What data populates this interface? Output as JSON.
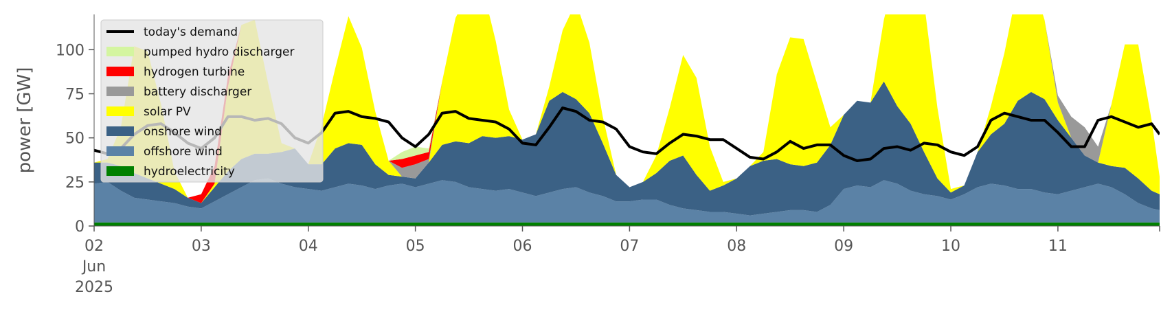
{
  "chart_data": {
    "type": "area",
    "title": "",
    "xlabel": "",
    "ylabel": "power [GW]",
    "ylim": [
      0,
      120
    ],
    "xlim_days": [
      0,
      9.95
    ],
    "yticks": [
      0,
      25,
      50,
      75,
      100
    ],
    "xticks": [
      {
        "label": "02",
        "sub": [
          "Jun",
          "2025"
        ]
      },
      {
        "label": "03"
      },
      {
        "label": "04"
      },
      {
        "label": "05"
      },
      {
        "label": "06"
      },
      {
        "label": "07"
      },
      {
        "label": "08"
      },
      {
        "label": "09"
      },
      {
        "label": "10"
      },
      {
        "label": "11"
      }
    ],
    "legend_position": "top-left",
    "grid": false,
    "x": [
      0.0,
      0.125,
      0.25,
      0.375,
      0.5,
      0.625,
      0.75,
      0.875,
      1.0,
      1.125,
      1.25,
      1.375,
      1.5,
      1.625,
      1.75,
      1.875,
      2.0,
      2.125,
      2.25,
      2.375,
      2.5,
      2.625,
      2.75,
      2.875,
      3.0,
      3.125,
      3.25,
      3.375,
      3.5,
      3.625,
      3.75,
      3.875,
      4.0,
      4.125,
      4.25,
      4.375,
      4.5,
      4.625,
      4.75,
      4.875,
      5.0,
      5.125,
      5.25,
      5.375,
      5.5,
      5.625,
      5.75,
      5.875,
      6.0,
      6.125,
      6.25,
      6.375,
      6.5,
      6.625,
      6.75,
      6.875,
      7.0,
      7.125,
      7.25,
      7.375,
      7.5,
      7.625,
      7.75,
      7.875,
      8.0,
      8.125,
      8.25,
      8.375,
      8.5,
      8.625,
      8.75,
      8.875,
      9.0,
      9.125,
      9.25,
      9.375,
      9.5,
      9.625,
      9.75,
      9.875,
      9.95
    ],
    "series": [
      {
        "name": "hydroelectricity",
        "color": "#008000",
        "values": [
          2,
          2,
          2,
          2,
          2,
          2,
          2,
          2,
          2,
          2,
          2,
          2,
          2,
          2,
          2,
          2,
          2,
          2,
          2,
          2,
          2,
          2,
          2,
          2,
          2,
          2,
          2,
          2,
          2,
          2,
          2,
          2,
          2,
          2,
          2,
          2,
          2,
          2,
          2,
          2,
          2,
          2,
          2,
          2,
          2,
          2,
          2,
          2,
          2,
          2,
          2,
          2,
          2,
          2,
          2,
          2,
          2,
          2,
          2,
          2,
          2,
          2,
          2,
          2,
          2,
          2,
          2,
          2,
          2,
          2,
          2,
          2,
          2,
          2,
          2,
          2,
          2,
          2,
          2,
          2,
          2
        ]
      },
      {
        "name": "offshore wind",
        "color": "#5b82a6",
        "values": [
          22,
          23,
          18,
          14,
          13,
          12,
          11,
          9,
          8,
          12,
          16,
          20,
          24,
          25,
          22,
          20,
          19,
          18,
          20,
          22,
          21,
          19,
          21,
          22,
          20,
          22,
          24,
          23,
          20,
          19,
          18,
          19,
          17,
          15,
          17,
          19,
          20,
          17,
          15,
          12,
          12,
          13,
          13,
          10,
          8,
          7,
          6,
          6,
          5,
          4,
          5,
          6,
          7,
          7,
          6,
          10,
          19,
          21,
          20,
          24,
          22,
          18,
          16,
          15,
          13,
          16,
          20,
          22,
          21,
          19,
          19,
          17,
          16,
          18,
          20,
          22,
          20,
          16,
          11,
          8,
          7
        ]
      },
      {
        "name": "onshore wind",
        "color": "#3b6185",
        "values": [
          12,
          11,
          14,
          14,
          12,
          10,
          8,
          5,
          3,
          8,
          13,
          16,
          15,
          14,
          18,
          22,
          14,
          15,
          22,
          23,
          23,
          14,
          6,
          4,
          5,
          12,
          20,
          23,
          25,
          30,
          30,
          30,
          30,
          35,
          52,
          55,
          50,
          45,
          30,
          15,
          8,
          10,
          15,
          25,
          30,
          20,
          12,
          15,
          20,
          28,
          30,
          30,
          26,
          25,
          28,
          34,
          42,
          48,
          48,
          56,
          44,
          38,
          24,
          10,
          4,
          5,
          20,
          28,
          35,
          50,
          55,
          53,
          42,
          30,
          18,
          12,
          12,
          15,
          14,
          10,
          9
        ]
      },
      {
        "name": "solar PV",
        "color": "#ffff00",
        "values": [
          0,
          2,
          22,
          72,
          72,
          45,
          10,
          0,
          0,
          2,
          48,
          76,
          76,
          40,
          5,
          0,
          0,
          22,
          45,
          72,
          55,
          30,
          8,
          0,
          0,
          0,
          36,
          70,
          86,
          85,
          55,
          15,
          0,
          0,
          8,
          35,
          55,
          40,
          15,
          0,
          0,
          0,
          10,
          30,
          57,
          55,
          25,
          2,
          0,
          0,
          5,
          48,
          72,
          72,
          45,
          10,
          0,
          0,
          0,
          35,
          80,
          88,
          85,
          40,
          2,
          0,
          0,
          16,
          40,
          65,
          65,
          45,
          10,
          0,
          0,
          0,
          35,
          70,
          76,
          40,
          10
        ]
      },
      {
        "name": "battery discharger",
        "color": "#999999",
        "values": [
          0,
          0,
          0,
          0,
          0,
          0,
          0,
          0,
          0,
          0,
          0,
          0,
          0,
          0,
          0,
          0,
          0,
          0,
          0,
          0,
          0,
          0,
          0,
          5,
          8,
          2,
          0,
          0,
          0,
          0,
          0,
          0,
          0,
          0,
          0,
          0,
          0,
          0,
          0,
          0,
          0,
          0,
          0,
          0,
          0,
          0,
          0,
          0,
          0,
          0,
          0,
          0,
          0,
          0,
          0,
          0,
          0,
          0,
          0,
          0,
          0,
          0,
          0,
          0,
          0,
          0,
          0,
          0,
          0,
          0,
          0,
          0,
          4,
          12,
          16,
          9,
          0,
          0,
          0,
          0,
          0
        ]
      },
      {
        "name": "hydrogen turbine",
        "color": "#ff0000",
        "values": [
          0,
          0,
          0,
          0,
          0,
          0,
          0,
          0,
          5,
          10,
          6,
          0,
          0,
          0,
          0,
          0,
          0,
          0,
          0,
          0,
          0,
          0,
          0,
          5,
          5,
          4,
          0,
          0,
          0,
          0,
          0,
          0,
          0,
          0,
          0,
          0,
          0,
          0,
          0,
          0,
          0,
          0,
          0,
          0,
          0,
          0,
          0,
          0,
          0,
          0,
          0,
          0,
          0,
          0,
          0,
          0,
          0,
          0,
          0,
          0,
          0,
          0,
          0,
          0,
          0,
          0,
          0,
          0,
          0,
          0,
          0,
          0,
          0,
          0,
          0,
          0,
          0,
          0,
          0,
          0,
          0
        ]
      },
      {
        "name": "pumped hydro discharger",
        "color": "#d4f5a0",
        "values": [
          0,
          0,
          0,
          0,
          0,
          0,
          0,
          0,
          0,
          0,
          0,
          0,
          0,
          0,
          0,
          0,
          0,
          0,
          0,
          0,
          0,
          0,
          0,
          4,
          5,
          2,
          0,
          0,
          0,
          0,
          0,
          0,
          0,
          0,
          0,
          0,
          0,
          0,
          0,
          0,
          0,
          0,
          0,
          0,
          0,
          0,
          0,
          0,
          0,
          0,
          0,
          0,
          0,
          0,
          0,
          0,
          0,
          0,
          0,
          0,
          0,
          0,
          0,
          0,
          0,
          0,
          0,
          0,
          0,
          0,
          0,
          0,
          0,
          0,
          0,
          0,
          0,
          0,
          0,
          0,
          0
        ]
      }
    ],
    "demand": {
      "name": "today's demand",
      "color": "#000000",
      "values": [
        43,
        41,
        44,
        52,
        57,
        58,
        53,
        47,
        44,
        50,
        62,
        62,
        60,
        61,
        58,
        50,
        47,
        53,
        64,
        65,
        62,
        61,
        59,
        50,
        45,
        52,
        64,
        65,
        61,
        60,
        59,
        55,
        47,
        46,
        56,
        67,
        65,
        60,
        59,
        55,
        45,
        42,
        41,
        47,
        52,
        51,
        49,
        49,
        44,
        39,
        38,
        42,
        48,
        44,
        46,
        46,
        40,
        37,
        38,
        44,
        45,
        43,
        47,
        46,
        42,
        40,
        45,
        60,
        64,
        62,
        60,
        60,
        53,
        45,
        45,
        60,
        62,
        59,
        56,
        58,
        52
      ]
    },
    "legend": [
      {
        "label": "today's demand",
        "color": "#000000",
        "kind": "line"
      },
      {
        "label": "pumped hydro discharger",
        "color": "#d4f5a0",
        "kind": "patch"
      },
      {
        "label": "hydrogen turbine",
        "color": "#ff0000",
        "kind": "patch"
      },
      {
        "label": "battery discharger",
        "color": "#999999",
        "kind": "patch"
      },
      {
        "label": "solar PV",
        "color": "#ffff00",
        "kind": "patch"
      },
      {
        "label": "onshore wind",
        "color": "#3b6185",
        "kind": "patch"
      },
      {
        "label": "offshore wind",
        "color": "#5b82a6",
        "kind": "patch"
      },
      {
        "label": "hydroelectricity",
        "color": "#008000",
        "kind": "patch"
      }
    ]
  }
}
